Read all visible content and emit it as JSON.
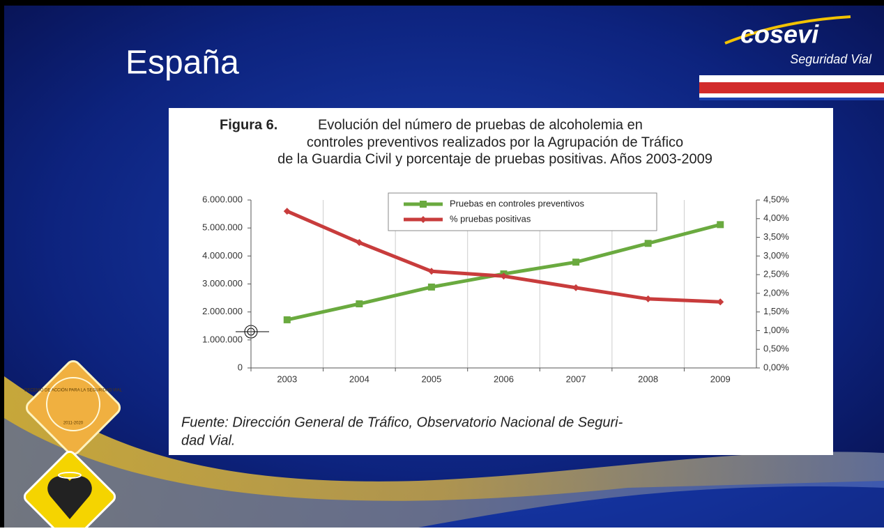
{
  "slide": {
    "title": "España"
  },
  "logo": {
    "name": "cosevi",
    "tagline": "Seguridad Vial"
  },
  "badge": {
    "text": "DECENIO DE ACCIÓN PARA LA SEGURIDAD VIAL",
    "years": "2011-2020"
  },
  "chart_data": {
    "type": "line",
    "figure_label": "Figura 6.",
    "title": [
      "Evolución del número de pruebas de alcoholemia en",
      "controles preventivos realizados por la Agrupación de Tráfico",
      "de la Guardia Civil y porcentaje de pruebas positivas. Años 2003-2009"
    ],
    "source": [
      "Fuente: Dirección General de Tráfico, Observatorio Nacional de Seguri-",
      "dad Vial."
    ],
    "categories": [
      "2003",
      "2004",
      "2005",
      "2006",
      "2007",
      "2008",
      "2009"
    ],
    "series": [
      {
        "name": "Pruebas en controles preventivos",
        "color": "#6aaa3f",
        "marker": "square",
        "values": [
          1720000,
          2290000,
          2890000,
          3360000,
          3780000,
          4450000,
          5120000
        ]
      },
      {
        "name": "% pruebas positivas",
        "color": "#c83c3c",
        "marker": "diamond",
        "axis": "y2",
        "values": [
          4.2,
          3.36,
          2.59,
          2.46,
          2.15,
          1.85,
          1.77
        ]
      }
    ],
    "ylim": [
      0,
      6000000
    ],
    "yticks": [
      0,
      {
        "value": 1000000,
        "label": "1.000.000"
      },
      {
        "value": 2000000,
        "label": "2.000.000"
      },
      {
        "value": 3000000,
        "label": "3.000.000"
      },
      {
        "value": 4000000,
        "label": "4.000.000"
      },
      {
        "value": 5000000,
        "label": "5.000.000"
      },
      {
        "value": 6000000,
        "label": "6.000.000"
      }
    ],
    "y2lim": [
      0,
      4.5
    ],
    "y2ticks": [
      {
        "value": 0,
        "label": "0,00%"
      },
      {
        "value": 0.5,
        "label": "0,50%"
      },
      {
        "value": 1,
        "label": "1,00%"
      },
      {
        "value": 1.5,
        "label": "1,50%"
      },
      {
        "value": 2,
        "label": "2,00%"
      },
      {
        "value": 2.5,
        "label": "2,50%"
      },
      {
        "value": 3,
        "label": "3,00%"
      },
      {
        "value": 3.5,
        "label": "3,50%"
      },
      {
        "value": 4,
        "label": "4,00%"
      },
      {
        "value": 4.5,
        "label": "4,50%"
      }
    ],
    "grid": true,
    "legend": "top"
  }
}
